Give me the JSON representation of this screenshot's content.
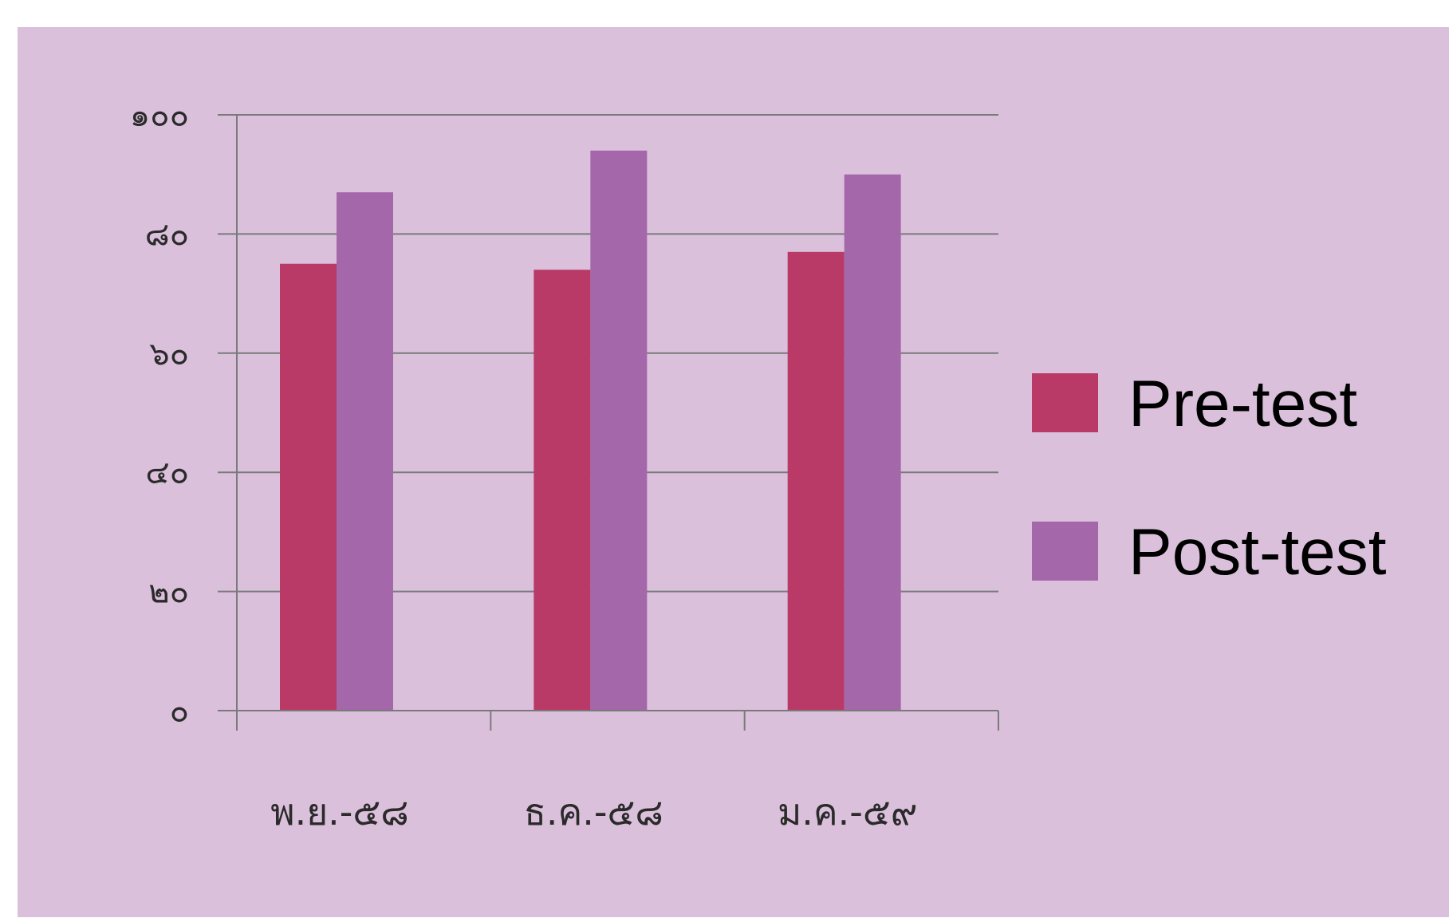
{
  "chart_data": {
    "type": "bar",
    "title": "",
    "xlabel": "",
    "ylabel": "",
    "categories": [
      "พ.ย.-๕๘",
      "ธ.ค.-๕๘",
      "ม.ค.-๕๙"
    ],
    "series": [
      {
        "name": "Pre-test",
        "values": [
          75,
          74,
          77
        ],
        "color": "#b93a66"
      },
      {
        "name": "Post-test",
        "values": [
          87,
          94,
          90
        ],
        "color": "#a467a9"
      }
    ],
    "ylim": [
      0,
      100
    ],
    "yticks": [
      {
        "value": 0,
        "label": "๐"
      },
      {
        "value": 20,
        "label": "๒๐"
      },
      {
        "value": 40,
        "label": "๔๐"
      },
      {
        "value": 60,
        "label": "๖๐"
      },
      {
        "value": 80,
        "label": "๘๐"
      },
      {
        "value": 100,
        "label": "๑๐๐"
      }
    ],
    "grid": true,
    "legend_position": "right",
    "background_color": "#dbc0dc",
    "axis_color": "#7a7a7a"
  }
}
